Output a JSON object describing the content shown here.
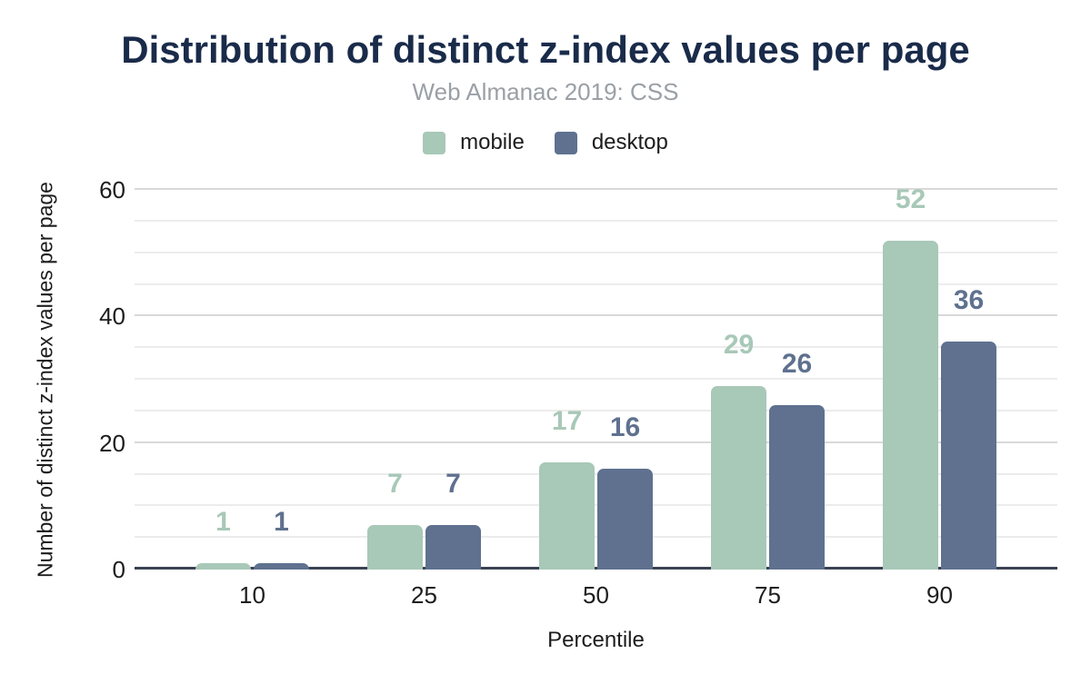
{
  "chart_data": {
    "type": "bar",
    "title": "Distribution of distinct z-index values per page",
    "subtitle": "Web Almanac 2019: CSS",
    "xlabel": "Percentile",
    "ylabel": "Number of distinct z-index values per page",
    "categories": [
      "10",
      "25",
      "50",
      "75",
      "90"
    ],
    "series": [
      {
        "name": "mobile",
        "color": "#a8c8b8",
        "values": [
          1,
          7,
          17,
          29,
          52
        ]
      },
      {
        "name": "desktop",
        "color": "#5f718f",
        "values": [
          1,
          7,
          16,
          26,
          36
        ]
      }
    ],
    "ylim": [
      0,
      60
    ],
    "y_ticks": [
      0,
      20,
      40,
      60
    ],
    "minor_grid_step": 5,
    "grid": true,
    "legend_position": "top",
    "data_labels": true
  },
  "colors": {
    "background": "#ffffff",
    "title": "#1a2b4a",
    "subtitle": "#9aa0a6",
    "axis_text": "#1d1d1d",
    "baseline": "#3b4252",
    "gridline_major": "#d9d9d9",
    "gridline_minor": "#ececec"
  }
}
